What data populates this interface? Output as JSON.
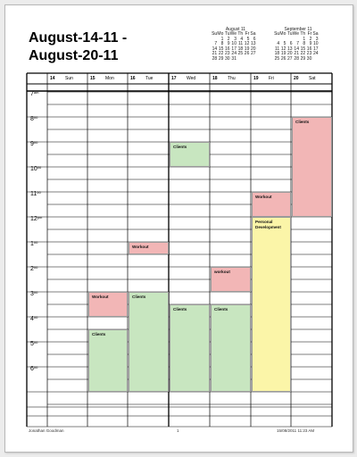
{
  "title": {
    "line1": "August-14-11 -",
    "line2": "August-20-11"
  },
  "mini_calendars": [
    {
      "title": "August 11",
      "weekdays": [
        "Su",
        "Mo",
        "Tu",
        "We",
        "Th",
        "Fr",
        "Sa"
      ],
      "weeks": [
        [
          "",
          "1",
          "2",
          "3",
          "4",
          "5",
          "6"
        ],
        [
          "7",
          "8",
          "9",
          "10",
          "11",
          "12",
          "13"
        ],
        [
          "14",
          "15",
          "16",
          "17",
          "18",
          "19",
          "20"
        ],
        [
          "21",
          "22",
          "23",
          "24",
          "25",
          "26",
          "27"
        ],
        [
          "28",
          "29",
          "30",
          "31",
          "",
          "",
          ""
        ]
      ]
    },
    {
      "title": "September 11",
      "weekdays": [
        "Su",
        "Mo",
        "Tu",
        "We",
        "Th",
        "Fr",
        "Sa"
      ],
      "weeks": [
        [
          "",
          "",
          "",
          "",
          "1",
          "2",
          "3"
        ],
        [
          "4",
          "5",
          "6",
          "7",
          "8",
          "9",
          "10"
        ],
        [
          "11",
          "12",
          "13",
          "14",
          "15",
          "16",
          "17"
        ],
        [
          "18",
          "19",
          "20",
          "21",
          "22",
          "23",
          "24"
        ],
        [
          "25",
          "26",
          "27",
          "28",
          "29",
          "30",
          ""
        ]
      ]
    }
  ],
  "days": [
    {
      "num": "14",
      "name": "Sun"
    },
    {
      "num": "15",
      "name": "Mon"
    },
    {
      "num": "16",
      "name": "Tue"
    },
    {
      "num": "17",
      "name": "Wed"
    },
    {
      "num": "18",
      "name": "Thu"
    },
    {
      "num": "19",
      "name": "Fri"
    },
    {
      "num": "20",
      "name": "Sat"
    }
  ],
  "hours": [
    {
      "h": "7",
      "s": "am"
    },
    {
      "h": "8",
      "s": "00"
    },
    {
      "h": "9",
      "s": "00"
    },
    {
      "h": "10",
      "s": "00"
    },
    {
      "h": "11",
      "s": "00"
    },
    {
      "h": "12",
      "s": "pm"
    },
    {
      "h": "1",
      "s": "00"
    },
    {
      "h": "2",
      "s": "00"
    },
    {
      "h": "3",
      "s": "00"
    },
    {
      "h": "4",
      "s": "00"
    },
    {
      "h": "5",
      "s": "00"
    },
    {
      "h": "6",
      "s": "00"
    }
  ],
  "events": [
    {
      "label": "Clients",
      "day": 6,
      "start": 8.0,
      "end": 12.0,
      "color": "#f2b6b6"
    },
    {
      "label": "Clients",
      "day": 3,
      "start": 9.0,
      "end": 10.0,
      "color": "#c8e6c0"
    },
    {
      "label": "Workout",
      "day": 5,
      "start": 11.0,
      "end": 12.0,
      "color": "#f2b6b6"
    },
    {
      "label": "Personal Development",
      "day": 5,
      "start": 12.0,
      "end": 19.0,
      "color": "#fbf5a8"
    },
    {
      "label": "Workout",
      "day": 2,
      "start": 13.0,
      "end": 13.5,
      "color": "#f2b6b6"
    },
    {
      "label": "workout",
      "day": 4,
      "start": 14.0,
      "end": 15.0,
      "color": "#f2b6b6"
    },
    {
      "label": "Workout",
      "day": 1,
      "start": 15.0,
      "end": 16.0,
      "color": "#f2b6b6"
    },
    {
      "label": "Clients",
      "day": 2,
      "start": 15.0,
      "end": 19.0,
      "color": "#c8e6c0"
    },
    {
      "label": "Clients",
      "day": 3,
      "start": 15.5,
      "end": 19.0,
      "color": "#c8e6c0"
    },
    {
      "label": "Clients",
      "day": 4,
      "start": 15.5,
      "end": 19.0,
      "color": "#c8e6c0"
    },
    {
      "label": "Clients",
      "day": 1,
      "start": 16.5,
      "end": 19.0,
      "color": "#c8e6c0"
    }
  ],
  "footer": {
    "author": "Jonathan Goodman",
    "page": "1",
    "datetime": "15/08/2011 11:23 AM"
  }
}
